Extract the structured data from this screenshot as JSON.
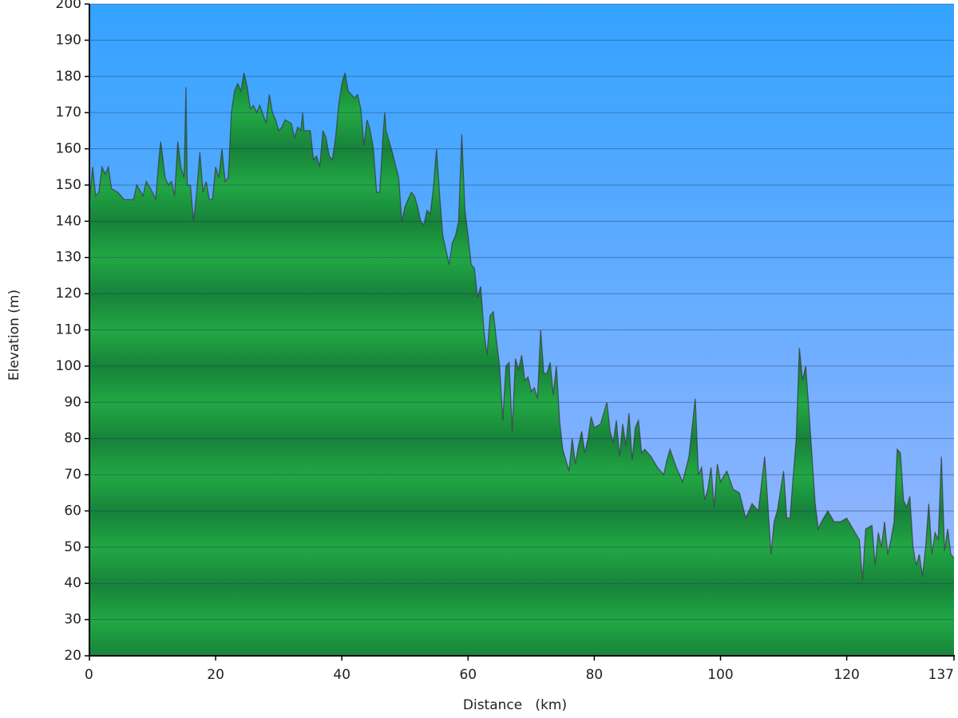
{
  "chart_data": {
    "type": "area",
    "xlabel": "Distance   (km)",
    "ylabel": "Elevation (m)",
    "color": "#22a844",
    "line_color": "#3a3a3a",
    "grid": true,
    "xlim": [
      0,
      137
    ],
    "xticks": [
      0,
      20,
      40,
      60,
      80,
      100,
      120,
      137
    ],
    "ylim": [
      20,
      200
    ],
    "yticks": [
      20,
      30,
      40,
      50,
      60,
      70,
      80,
      90,
      100,
      110,
      120,
      130,
      140,
      150,
      160,
      170,
      180,
      190,
      200
    ],
    "x": [
      0,
      0.5,
      1,
      1.5,
      2,
      2.5,
      3,
      3.5,
      4.5,
      5.5,
      7,
      7.5,
      8.5,
      9,
      10,
      10.5,
      11,
      11.3,
      12,
      12.5,
      13,
      13.5,
      14,
      14.5,
      15,
      15.3,
      15.5,
      16,
      16.5,
      17,
      17.5,
      18,
      18.5,
      19,
      19.5,
      20,
      20.5,
      21,
      21.5,
      22,
      22.5,
      23,
      23.5,
      24,
      24.5,
      25,
      25.5,
      26,
      26.5,
      27,
      28,
      28.5,
      29,
      29.5,
      30,
      30.5,
      31,
      32,
      32.5,
      33,
      33.5,
      33.8,
      34,
      35,
      35.5,
      36,
      36.5,
      37,
      37.5,
      38,
      38.5,
      39,
      39.5,
      40,
      40.5,
      41,
      42,
      42.5,
      43,
      43.5,
      44,
      44.5,
      45,
      45.5,
      46,
      46.5,
      46.8,
      47,
      48,
      49,
      49.5,
      50,
      51,
      51.5,
      52,
      52.5,
      53,
      53.5,
      54,
      54.5,
      55,
      55.5,
      56,
      56.5,
      57,
      57.5,
      58,
      58.5,
      59,
      59.5,
      60,
      60.5,
      61,
      61.5,
      62,
      62.5,
      63,
      63.5,
      64,
      64.5,
      65,
      65.5,
      66,
      66.5,
      67,
      67.5,
      68,
      68.5,
      69,
      69.5,
      70,
      70.5,
      71,
      71.5,
      72,
      72.5,
      73,
      73.5,
      74,
      74.5,
      75,
      75.5,
      76,
      76.5,
      77,
      77.5,
      78,
      78.5,
      79,
      79.5,
      80,
      81,
      82,
      82.5,
      83,
      83.5,
      84,
      84.5,
      85,
      85.5,
      86,
      86.5,
      87,
      87.5,
      88,
      89,
      90,
      91,
      91.5,
      92,
      93,
      93.5,
      94,
      95,
      96,
      96.5,
      97,
      97.5,
      98,
      98.5,
      99,
      99.5,
      100,
      101,
      102,
      103,
      104,
      105,
      106,
      107,
      107.5,
      108,
      108.5,
      109,
      110,
      110.5,
      111,
      112,
      112.5,
      113,
      113.5,
      114,
      114.5,
      115,
      115.5,
      116,
      117,
      118,
      119,
      120,
      121,
      122,
      122.5,
      123,
      124,
      124.5,
      125,
      125.5,
      126,
      126.5,
      127,
      127.5,
      128,
      128.5,
      129,
      129.5,
      130,
      130.5,
      131,
      131.5,
      132,
      132.5,
      133,
      133.5,
      134,
      134.5,
      135,
      135.5,
      136,
      136.5,
      137
    ],
    "values": [
      145,
      155,
      147,
      148,
      155,
      153,
      155,
      149,
      148,
      146,
      146,
      150,
      147,
      151,
      148,
      146,
      157,
      162,
      152,
      150,
      151,
      147,
      162,
      155,
      152,
      177,
      150,
      150,
      140,
      148,
      159,
      148,
      151,
      146,
      146,
      155,
      152,
      160,
      151,
      152,
      170,
      176,
      178,
      176,
      181,
      177,
      171,
      172,
      170,
      172,
      167,
      175,
      170,
      168,
      165,
      166,
      168,
      167,
      163,
      166,
      165,
      170,
      165,
      165,
      157,
      158,
      155,
      165,
      163,
      158,
      157,
      163,
      172,
      178,
      181,
      176,
      174,
      175,
      171,
      161,
      168,
      165,
      160,
      148,
      148,
      163,
      170,
      165,
      159,
      152,
      140,
      144,
      148,
      147,
      144,
      140,
      139,
      143,
      142,
      149,
      160,
      147,
      136,
      132,
      128,
      134,
      136,
      140,
      164,
      143,
      136,
      128,
      127,
      119,
      122,
      110,
      103,
      114,
      115,
      107,
      100,
      85,
      100,
      101,
      82,
      102,
      99,
      103,
      96,
      97,
      93,
      94,
      91,
      110,
      98,
      98,
      101,
      92,
      100,
      85,
      77,
      74,
      71,
      80,
      73,
      78,
      82,
      76,
      80,
      86,
      83,
      84,
      90,
      82,
      79,
      85,
      75,
      84,
      78,
      87,
      74,
      83,
      85,
      76,
      77,
      75,
      72,
      70,
      74,
      77,
      72,
      70,
      68,
      75,
      91,
      70,
      72,
      63,
      66,
      72,
      61,
      73,
      68,
      71,
      66,
      65,
      58,
      62,
      60,
      75,
      62,
      48,
      57,
      60,
      71,
      58,
      58,
      80,
      105,
      96,
      100,
      88,
      75,
      62,
      55,
      57,
      60,
      57,
      57,
      58,
      55,
      52,
      41,
      55,
      56,
      45,
      54,
      50,
      57,
      48,
      52,
      57,
      77,
      76,
      63,
      61,
      64,
      50,
      45,
      48,
      42,
      50,
      62,
      48,
      54,
      52,
      75,
      49,
      55,
      48,
      47
    ]
  }
}
